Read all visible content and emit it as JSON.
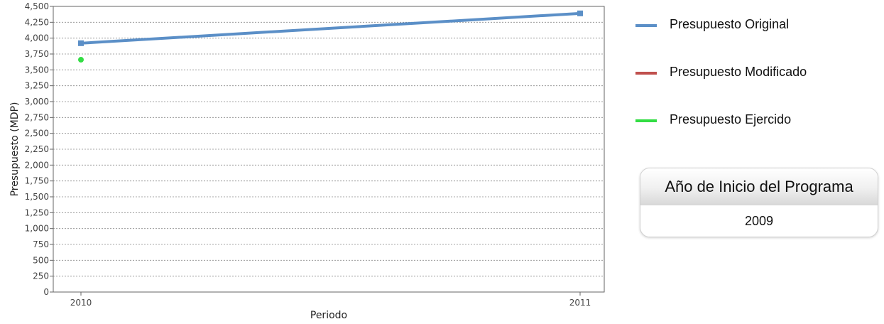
{
  "chart_data": {
    "type": "line",
    "x": [
      "2010",
      "2011"
    ],
    "xlabel": "Periodo",
    "ylabel": "Presupuesto (MDP)",
    "ylim": [
      0,
      4500
    ],
    "yticks": [
      0,
      250,
      500,
      750,
      1000,
      1250,
      1500,
      1750,
      2000,
      2250,
      2500,
      2750,
      3000,
      3250,
      3500,
      3750,
      4000,
      4250,
      4500
    ],
    "grid": true,
    "legend_position": "right",
    "series": [
      {
        "name": "Presupuesto Original",
        "color": "#5b8fc7",
        "values": [
          3920,
          4390
        ]
      },
      {
        "name": "Presupuesto Modificado",
        "color": "#c0504d",
        "values": [
          null,
          null
        ]
      },
      {
        "name": "Presupuesto Ejercido",
        "color": "#33dd44",
        "values": [
          3660,
          null
        ]
      }
    ]
  },
  "info_box": {
    "title": "Año de Inicio del Programa",
    "value": "2009"
  }
}
